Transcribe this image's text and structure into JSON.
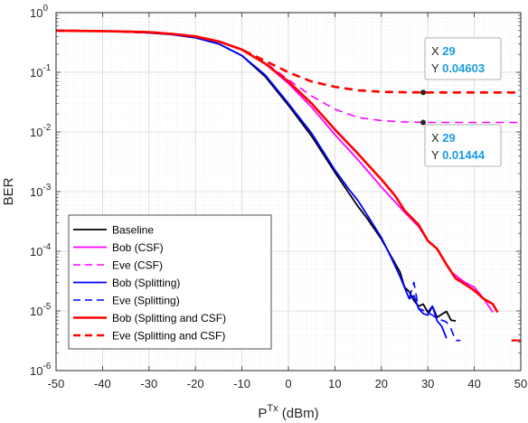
{
  "chart_data": {
    "type": "line",
    "xlabel": "P",
    "xlabel_sup": "Tx",
    "xlabel_unit": " (dBm)",
    "ylabel": "BER",
    "xlim": [
      -50,
      50
    ],
    "ylim_log10": [
      -6,
      0
    ],
    "yscale": "log",
    "grid": true,
    "legend_position": "bottom-left",
    "x_ticks": [
      -50,
      -40,
      -30,
      -20,
      -10,
      0,
      10,
      20,
      30,
      40,
      50
    ],
    "y_tick_exponents": [
      0,
      -1,
      -2,
      -3,
      -4,
      -5,
      -6
    ],
    "series": [
      {
        "name": "Baseline",
        "color": "#000000",
        "dash": "solid",
        "width": 1.8,
        "x": [
          -50,
          -40,
          -30,
          -25,
          -20,
          -15,
          -10,
          -5,
          0,
          5,
          10,
          13,
          15,
          17,
          20,
          22,
          24,
          25,
          26,
          27,
          28,
          29,
          30,
          31,
          32,
          33,
          34,
          35,
          36
        ],
        "y": [
          0.5,
          0.49,
          0.46,
          0.43,
          0.38,
          0.3,
          0.19,
          0.085,
          0.028,
          0.0085,
          0.0021,
          0.00095,
          0.00056,
          0.00035,
          0.00016,
          8.5e-05,
          4.5e-05,
          2.5e-05,
          2.1e-05,
          1.5e-05,
          1.2e-05,
          1.3e-05,
          9.5e-06,
          1.2e-05,
          7.8e-06,
          8.8e-06,
          9.8e-06,
          7e-06,
          6.8e-06
        ]
      },
      {
        "name": "Bob (CSF)",
        "color": "#ff00ff",
        "dash": "solid",
        "width": 1.8,
        "x": [
          -50,
          -40,
          -30,
          -25,
          -20,
          -15,
          -10,
          -5,
          0,
          5,
          10,
          15,
          20,
          25,
          28,
          30,
          32,
          35,
          38,
          40,
          42,
          44
        ],
        "y": [
          0.5,
          0.49,
          0.47,
          0.44,
          0.4,
          0.33,
          0.24,
          0.14,
          0.065,
          0.026,
          0.009,
          0.0034,
          0.0012,
          0.00045,
          0.00026,
          0.00015,
          0.00011,
          4.5e-05,
          3e-05,
          2.5e-05,
          1.6e-05,
          9.5e-06
        ]
      },
      {
        "name": "Eve (CSF)",
        "color": "#ff00ff",
        "dash": "dashed",
        "width": 1.6,
        "x": [
          -50,
          -40,
          -30,
          -25,
          -20,
          -15,
          -10,
          -5,
          0,
          5,
          10,
          15,
          20,
          25,
          30,
          35,
          40,
          45,
          50
        ],
        "y": [
          0.5,
          0.49,
          0.47,
          0.44,
          0.4,
          0.33,
          0.24,
          0.145,
          0.075,
          0.04,
          0.024,
          0.0175,
          0.0155,
          0.0147,
          0.0144,
          0.0144,
          0.0144,
          0.0144,
          0.0144
        ]
      },
      {
        "name": "Bob (Splitting)",
        "color": "#0000ff",
        "dash": "solid",
        "width": 1.8,
        "x": [
          -50,
          -40,
          -30,
          -25,
          -20,
          -15,
          -10,
          -5,
          0,
          5,
          10,
          13,
          15,
          17,
          20,
          22,
          24,
          26,
          27,
          28,
          29,
          30,
          31,
          32,
          33,
          34
        ],
        "y": [
          0.5,
          0.49,
          0.46,
          0.43,
          0.38,
          0.3,
          0.19,
          0.09,
          0.03,
          0.0095,
          0.0023,
          0.0011,
          0.0007,
          0.0004,
          0.00017,
          8.2e-05,
          3.8e-05,
          1.6e-05,
          1.8e-05,
          1.1e-05,
          9e-06,
          8.5e-06,
          1.2e-05,
          6.8e-06,
          5.5e-06,
          3.5e-06
        ]
      },
      {
        "name": "Eve (Splitting)",
        "color": "#0000ff",
        "dash": "dashed",
        "width": 1.6,
        "x": [
          -50,
          -40,
          -30,
          -25,
          -20,
          -15,
          -10,
          -5,
          0,
          5,
          10,
          13,
          15,
          17,
          20,
          22,
          24,
          26,
          27,
          28,
          30,
          32,
          34,
          35,
          36,
          37
        ],
        "y": [
          0.5,
          0.49,
          0.46,
          0.43,
          0.38,
          0.3,
          0.19,
          0.09,
          0.03,
          0.0095,
          0.0023,
          0.0011,
          0.0007,
          0.0004,
          0.00017,
          8.2e-05,
          3.8e-05,
          1.6e-05,
          3e-05,
          1.1e-05,
          9.5e-06,
          7.5e-06,
          6.5e-06,
          5e-06,
          3.2e-06,
          3.2e-06
        ]
      },
      {
        "name": "Bob (Splitting and CSF)",
        "color": "#ff0000",
        "dash": "solid",
        "width": 2.6,
        "x": [
          -50,
          -40,
          -30,
          -25,
          -20,
          -15,
          -10,
          -5,
          0,
          5,
          10,
          15,
          20,
          23,
          25,
          28,
          30,
          32,
          34,
          36,
          38,
          40,
          42,
          44,
          45
        ],
        "y": [
          0.5,
          0.49,
          0.47,
          0.44,
          0.4,
          0.33,
          0.24,
          0.14,
          0.07,
          0.03,
          0.011,
          0.0043,
          0.0016,
          0.00085,
          0.00048,
          0.00028,
          0.00015,
          0.00011,
          6e-05,
          3.5e-05,
          2.8e-05,
          2.2e-05,
          1.6e-05,
          1.3e-05,
          9.5e-06
        ]
      },
      {
        "name": "Eve (Splitting and CSF)",
        "color": "#ff0000",
        "dash": "dashed",
        "width": 2.6,
        "x": [
          -50,
          -40,
          -30,
          -25,
          -20,
          -15,
          -10,
          -5,
          0,
          5,
          10,
          15,
          20,
          25,
          30,
          35,
          40,
          45,
          50
        ],
        "y": [
          0.5,
          0.49,
          0.47,
          0.44,
          0.4,
          0.33,
          0.24,
          0.155,
          0.1,
          0.07,
          0.057,
          0.05,
          0.047,
          0.0463,
          0.046,
          0.046,
          0.046,
          0.046,
          0.046
        ]
      }
    ],
    "extra_segment": {
      "color": "#ff0000",
      "x": [
        48,
        50
      ],
      "y": [
        3.2e-06,
        3.2e-06
      ]
    },
    "datatips": [
      {
        "x_label": "X",
        "x_value": "29",
        "y_label": "Y",
        "y_value": "0.04603",
        "point_x": 29,
        "point_y": 0.04603
      },
      {
        "x_label": "X",
        "x_value": "29",
        "y_label": "Y",
        "y_value": "0.01444",
        "point_x": 29,
        "point_y": 0.01444
      }
    ]
  }
}
